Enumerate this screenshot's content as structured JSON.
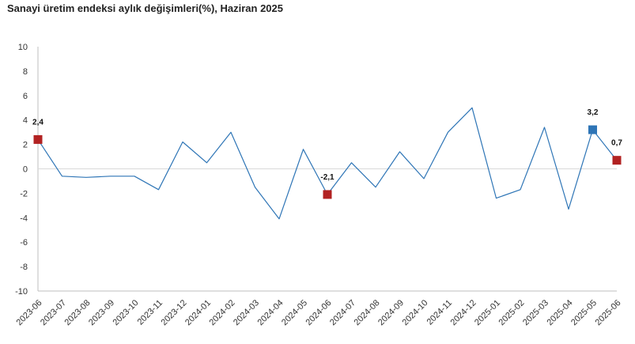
{
  "chart_data": {
    "type": "line",
    "title": "Sanayi üretim endeksi aylık değişimleri(%), Haziran 2025",
    "xlabel": "",
    "ylabel": "",
    "ylim": [
      -10,
      10
    ],
    "yticks": [
      10,
      8,
      6,
      4,
      2,
      0,
      -2,
      -4,
      -6,
      -8,
      -10
    ],
    "grid": false,
    "legend": "none",
    "categories": [
      "2023-06",
      "2023-07",
      "2023-08",
      "2023-09",
      "2023-10",
      "2023-11",
      "2023-12",
      "2024-01",
      "2024-02",
      "2024-03",
      "2024-04",
      "2024-05",
      "2024-06",
      "2024-07",
      "2024-08",
      "2024-09",
      "2024-10",
      "2024-11",
      "2024-12",
      "2025-01",
      "2025-02",
      "2025-03",
      "2025-04",
      "2025-05",
      "2025-06"
    ],
    "series": [
      {
        "values": [
          2.4,
          -0.6,
          -0.7,
          -0.6,
          -0.6,
          -1.7,
          2.2,
          0.5,
          3.0,
          -1.5,
          -4.1,
          1.6,
          -2.1,
          0.5,
          -1.5,
          1.4,
          -0.8,
          3.0,
          5.0,
          -2.4,
          -1.7,
          3.4,
          -3.3,
          3.2,
          0.7
        ],
        "color": "#2e75b6"
      }
    ],
    "highlights": [
      {
        "category": "2023-06",
        "value": 2.4,
        "label": "2,4",
        "color": "#b22222"
      },
      {
        "category": "2024-06",
        "value": -2.1,
        "label": "-2,1",
        "color": "#b22222"
      },
      {
        "category": "2025-05",
        "value": 3.2,
        "label": "3,2",
        "color": "#2e75b6"
      },
      {
        "category": "2025-06",
        "value": 0.7,
        "label": "0,7",
        "color": "#b22222"
      }
    ],
    "colors": {
      "axis": "#bfbfbf",
      "zero_line": "#d9d9d9",
      "line": "#2e75b6"
    }
  }
}
